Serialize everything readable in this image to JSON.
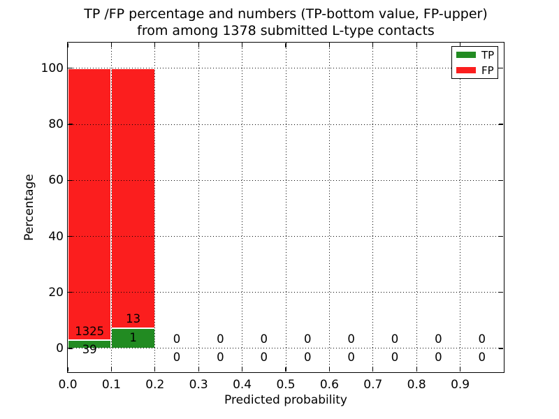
{
  "chart_data": {
    "type": "bar",
    "stacked": true,
    "title_line1": "TP /FP percentage and numbers (TP-bottom value, FP-upper)",
    "title_line2": "from among 1378 submitted L-type contacts",
    "xlabel": "Predicted probability",
    "ylabel": "Percentage",
    "total_submitted": 1378,
    "xlim": [
      0.0,
      1.0
    ],
    "ylim": [
      -8.5,
      109.2
    ],
    "x_ticks": [
      {
        "v": 0.0,
        "label": "0.0"
      },
      {
        "v": 0.1,
        "label": "0.1"
      },
      {
        "v": 0.2,
        "label": "0.2"
      },
      {
        "v": 0.3,
        "label": "0.3"
      },
      {
        "v": 0.4,
        "label": "0.4"
      },
      {
        "v": 0.5,
        "label": "0.5"
      },
      {
        "v": 0.6,
        "label": "0.6"
      },
      {
        "v": 0.7,
        "label": "0.7"
      },
      {
        "v": 0.8,
        "label": "0.8"
      },
      {
        "v": 0.9,
        "label": "0.9"
      }
    ],
    "y_ticks": [
      {
        "v": 0,
        "label": "0"
      },
      {
        "v": 20,
        "label": "20"
      },
      {
        "v": 40,
        "label": "40"
      },
      {
        "v": 60,
        "label": "60"
      },
      {
        "v": 80,
        "label": "80"
      },
      {
        "v": 100,
        "label": "100"
      }
    ],
    "grid": {
      "style": "dotted",
      "color": "#000000",
      "above_bars": true
    },
    "legend": {
      "position": "upper right",
      "items": [
        {
          "name": "TP",
          "color": "#228b22"
        },
        {
          "name": "FP",
          "color": "#fb1e1e"
        }
      ]
    },
    "colors": {
      "tp_green": "#228b22",
      "fp_red": "#fb1e1e",
      "bar_edge": "#ffffff",
      "background": "#ffffff",
      "text": "#000000"
    },
    "bins": [
      {
        "x_start": 0.0,
        "x_end": 0.1,
        "tp_count": 39,
        "fp_count": 1325,
        "tp_pct": 2.86,
        "fp_pct": 97.14
      },
      {
        "x_start": 0.1,
        "x_end": 0.2,
        "tp_count": 1,
        "fp_count": 13,
        "tp_pct": 7.14,
        "fp_pct": 92.86
      },
      {
        "x_start": 0.2,
        "x_end": 0.3,
        "tp_count": 0,
        "fp_count": 0,
        "tp_pct": 0,
        "fp_pct": 0
      },
      {
        "x_start": 0.3,
        "x_end": 0.4,
        "tp_count": 0,
        "fp_count": 0,
        "tp_pct": 0,
        "fp_pct": 0
      },
      {
        "x_start": 0.4,
        "x_end": 0.5,
        "tp_count": 0,
        "fp_count": 0,
        "tp_pct": 0,
        "fp_pct": 0
      },
      {
        "x_start": 0.5,
        "x_end": 0.6,
        "tp_count": 0,
        "fp_count": 0,
        "tp_pct": 0,
        "fp_pct": 0
      },
      {
        "x_start": 0.6,
        "x_end": 0.7,
        "tp_count": 0,
        "fp_count": 0,
        "tp_pct": 0,
        "fp_pct": 0
      },
      {
        "x_start": 0.7,
        "x_end": 0.8,
        "tp_count": 0,
        "fp_count": 0,
        "tp_pct": 0,
        "fp_pct": 0
      },
      {
        "x_start": 0.8,
        "x_end": 0.9,
        "tp_count": 0,
        "fp_count": 0,
        "tp_pct": 0,
        "fp_pct": 0
      },
      {
        "x_start": 0.9,
        "x_end": 1.0,
        "tp_count": 0,
        "fp_count": 0,
        "tp_pct": 0,
        "fp_pct": 0
      }
    ]
  }
}
